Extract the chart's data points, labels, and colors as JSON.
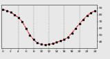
{
  "title": "",
  "x_values": [
    0,
    1,
    2,
    3,
    4,
    5,
    6,
    7,
    8,
    9,
    10,
    11,
    12,
    13,
    14,
    15,
    16,
    17,
    18,
    19,
    20,
    21,
    22,
    23,
    24
  ],
  "y_values": [
    88,
    86,
    84,
    80,
    76,
    70,
    60,
    50,
    43,
    38,
    36,
    35,
    36,
    37,
    39,
    41,
    43,
    47,
    53,
    60,
    67,
    73,
    79,
    83,
    86
  ],
  "line_color": "#dd0000",
  "marker_color": "#111111",
  "bg_color": "#e8e8e8",
  "plot_bg_color": "#e8e8e8",
  "grid_color": "#888888",
  "ylim": [
    30,
    95
  ],
  "xlim": [
    -0.5,
    24.5
  ],
  "yticks": [
    40,
    50,
    60,
    70,
    80,
    90
  ],
  "xticks": [
    0,
    2,
    4,
    6,
    8,
    10,
    12,
    14,
    16,
    18,
    20,
    22,
    24
  ],
  "vlines": [
    4,
    8,
    12,
    16,
    20
  ],
  "tick_fontsize": 3.2,
  "marker_size": 1.3,
  "line_width": 0.7
}
